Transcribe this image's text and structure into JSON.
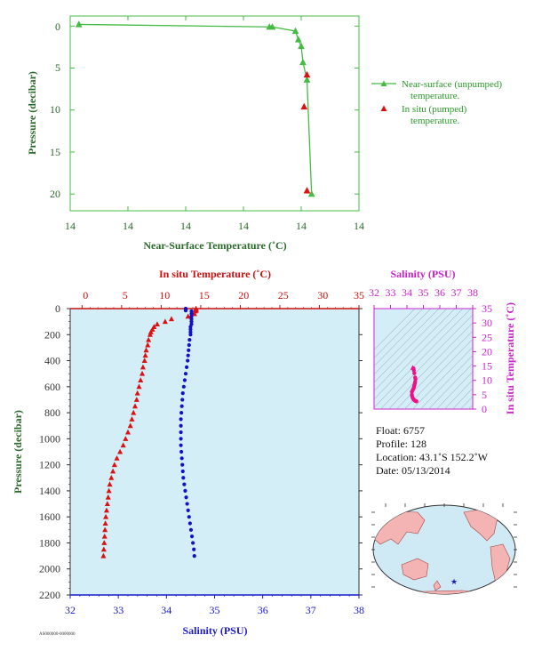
{
  "top": {
    "xlabel": "Near-Surface Temperature (˚C)",
    "ylabel": "Pressure (decibar)",
    "xticks": [
      "14",
      "14",
      "14",
      "14",
      "14",
      "14"
    ],
    "yticks": [
      "0",
      "5",
      "10",
      "15",
      "20"
    ],
    "legend": {
      "near_surface_line1": "Near-surface (unpumped)",
      "near_surface_line2": "temperature.",
      "insitu_line1": "In situ (pumped)",
      "insitu_line2": "temperature."
    }
  },
  "main": {
    "top_axis_label": "In situ Temperature (˚C)",
    "bottom_axis_label": "Salinity (PSU)",
    "ylabel": "Pressure (decibar)",
    "temp_ticks": [
      "0",
      "5",
      "10",
      "15",
      "20",
      "25",
      "30",
      "35"
    ],
    "sal_ticks": [
      "32",
      "33",
      "34",
      "35",
      "36",
      "37",
      "38"
    ],
    "pres_ticks": [
      "0",
      "200",
      "400",
      "600",
      "800",
      "1000",
      "1200",
      "1400",
      "1600",
      "1800",
      "2000",
      "2200"
    ]
  },
  "ts": {
    "title": "Salinity (PSU)",
    "ylabel": "In situ Temperature (˚C)",
    "sal_ticks": [
      "32",
      "33",
      "34",
      "35",
      "36",
      "37",
      "38"
    ],
    "temp_ticks": [
      "0",
      "5",
      "10",
      "15",
      "20",
      "25",
      "30",
      "35"
    ]
  },
  "info": {
    "float": "Float:  6757",
    "profile": "Profile:  128",
    "location": "Location:  43.1˚S  152.2˚W",
    "date": "Date:  05/13/2014"
  },
  "footer": "AS000000-0000000",
  "colors": {
    "near_surface": "#44bb44",
    "insitu": "#dd1111",
    "temperature": "#dd1111",
    "salinity": "#1111cc",
    "plot_bg": "#d4eef8",
    "ts_bg": "#d4eef8",
    "ts_points": "#ee1188"
  },
  "chart_data": [
    {
      "type": "line",
      "title": "",
      "xlabel": "Near-Surface Temperature (˚C)",
      "ylabel": "Pressure (decibar)",
      "xlim": [
        14.0,
        14.5
      ],
      "ylim": [
        22,
        -1.2
      ],
      "series": [
        {
          "name": "Near-surface (unpumped) temperature.",
          "points": [
            [
              14.015,
              -0.2
            ],
            [
              14.345,
              0.1
            ],
            [
              14.35,
              0.1
            ],
            [
              14.39,
              0.6
            ],
            [
              14.395,
              1.6
            ],
            [
              14.4,
              2.4
            ],
            [
              14.403,
              4.3
            ],
            [
              14.41,
              6.4
            ],
            [
              14.418,
              20.0
            ]
          ]
        },
        {
          "name": "In situ (pumped) temperature.",
          "points": [
            [
              14.41,
              5.8
            ],
            [
              14.405,
              9.6
            ],
            [
              14.41,
              19.6
            ]
          ]
        }
      ]
    },
    {
      "type": "scatter",
      "title": "",
      "xlabel": "Salinity (PSU)",
      "ylabel": "Pressure (decibar)",
      "ylim": [
        2200,
        0
      ],
      "x_top_label": "In situ Temperature (˚C)",
      "temp_lim": [
        -1.5,
        35
      ],
      "sal_lim": [
        32,
        38
      ],
      "series": [
        {
          "name": "Temperature",
          "pressure": [
            0,
            5,
            10,
            15,
            20,
            40,
            60,
            80,
            100,
            120,
            140,
            160,
            180,
            200,
            240,
            280,
            320,
            360,
            400,
            450,
            500,
            550,
            600,
            650,
            700,
            750,
            800,
            850,
            900,
            950,
            1000,
            1050,
            1100,
            1150,
            1200,
            1250,
            1300,
            1350,
            1400,
            1450,
            1500,
            1550,
            1600,
            1650,
            1700,
            1750,
            1800,
            1850,
            1900
          ],
          "values": [
            14.4,
            14.4,
            14.4,
            14.4,
            14.3,
            14.2,
            13.4,
            11.3,
            10.5,
            9.5,
            9.1,
            8.9,
            8.7,
            8.6,
            8.4,
            8.3,
            8.1,
            8.0,
            7.9,
            7.7,
            7.6,
            7.4,
            7.2,
            7.0,
            6.9,
            6.7,
            6.5,
            6.3,
            6.1,
            5.8,
            5.5,
            5.2,
            4.8,
            4.4,
            4.1,
            3.9,
            3.7,
            3.5,
            3.4,
            3.3,
            3.2,
            3.1,
            3.0,
            2.95,
            2.9,
            2.85,
            2.8,
            2.75,
            2.7
          ]
        },
        {
          "name": "Salinity",
          "pressure": [
            0,
            5,
            10,
            15,
            20,
            40,
            60,
            80,
            100,
            120,
            140,
            160,
            180,
            200,
            240,
            280,
            320,
            360,
            400,
            450,
            500,
            550,
            600,
            650,
            700,
            750,
            800,
            850,
            900,
            950,
            1000,
            1050,
            1100,
            1150,
            1200,
            1250,
            1300,
            1350,
            1400,
            1450,
            1500,
            1550,
            1600,
            1650,
            1700,
            1750,
            1800,
            1850,
            1900
          ],
          "values": [
            34.4,
            34.4,
            34.4,
            34.4,
            34.52,
            34.52,
            34.52,
            34.52,
            34.52,
            34.52,
            34.5,
            34.5,
            34.5,
            34.5,
            34.48,
            34.47,
            34.46,
            34.45,
            34.44,
            34.42,
            34.4,
            34.38,
            34.36,
            34.34,
            34.33,
            34.32,
            34.31,
            34.3,
            34.3,
            34.3,
            34.3,
            34.3,
            34.31,
            34.32,
            34.33,
            34.34,
            34.35,
            34.37,
            34.39,
            34.41,
            34.43,
            34.45,
            34.47,
            34.49,
            34.51,
            34.53,
            34.55,
            34.57,
            34.58
          ]
        }
      ]
    },
    {
      "type": "scatter",
      "title": "Salinity (PSU)",
      "xlabel": "Salinity (PSU)",
      "ylabel": "In situ Temperature (˚C)",
      "xlim": [
        32,
        38
      ],
      "ylim": [
        0,
        35
      ],
      "points": [
        [
          34.35,
          14.4
        ],
        [
          34.4,
          14.2
        ],
        [
          34.42,
          13.5
        ],
        [
          34.45,
          12.5
        ],
        [
          34.5,
          11.0
        ],
        [
          34.52,
          10.5
        ],
        [
          34.5,
          9.5
        ],
        [
          34.48,
          9.0
        ],
        [
          34.46,
          8.5
        ],
        [
          34.44,
          8.0
        ],
        [
          34.42,
          7.5
        ],
        [
          34.38,
          7.0
        ],
        [
          34.34,
          6.5
        ],
        [
          34.3,
          6.0
        ],
        [
          34.3,
          5.0
        ],
        [
          34.32,
          4.4
        ],
        [
          34.35,
          3.9
        ],
        [
          34.4,
          3.4
        ],
        [
          34.45,
          3.1
        ],
        [
          34.5,
          2.9
        ],
        [
          34.55,
          2.8
        ],
        [
          34.58,
          2.7
        ]
      ]
    }
  ]
}
